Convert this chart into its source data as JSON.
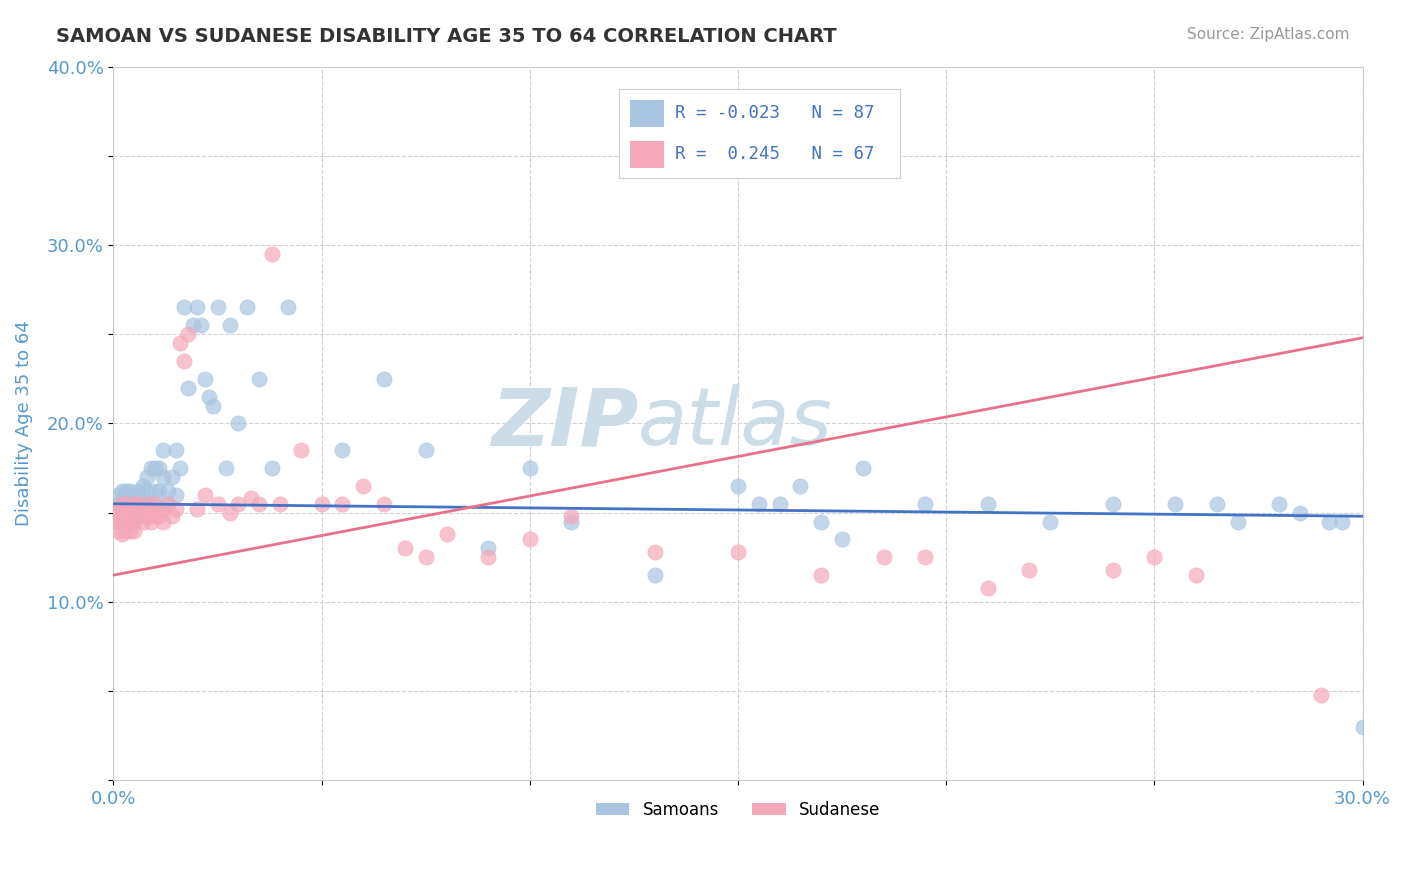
{
  "title": "SAMOAN VS SUDANESE DISABILITY AGE 35 TO 64 CORRELATION CHART",
  "source_text": "Source: ZipAtlas.com",
  "ylabel": "Disability Age 35 to 64",
  "xlim": [
    0.0,
    0.3
  ],
  "ylim": [
    0.0,
    0.4
  ],
  "xticks": [
    0.0,
    0.05,
    0.1,
    0.15,
    0.2,
    0.25,
    0.3
  ],
  "yticks": [
    0.0,
    0.05,
    0.1,
    0.15,
    0.2,
    0.25,
    0.3,
    0.35,
    0.4
  ],
  "xtick_labels": [
    "0.0%",
    "",
    "",
    "",
    "",
    "",
    "30.0%"
  ],
  "ytick_labels": [
    "",
    "",
    "10.0%",
    "",
    "20.0%",
    "",
    "30.0%",
    "",
    "40.0%"
  ],
  "samoan_R": -0.023,
  "samoan_N": 87,
  "sudanese_R": 0.245,
  "sudanese_N": 67,
  "samoan_color": "#a8c4e0",
  "sudanese_color": "#f4a7b9",
  "samoan_line_color": "#4472c4",
  "sudanese_line_color": "#e8718a",
  "background_color": "#ffffff",
  "grid_color": "#cccccc",
  "title_color": "#333333",
  "axis_label_color": "#5599cc",
  "tick_label_color": "#5599cc",
  "watermark_color": "#ccdde8",
  "legend_R_color": "#4472c4",
  "samoan_trend_start_y": 0.155,
  "samoan_trend_end_y": 0.148,
  "sudanese_trend_start_y": 0.115,
  "sudanese_trend_end_y": 0.248,
  "samoan_x": [
    0.001,
    0.001,
    0.001,
    0.001,
    0.002,
    0.002,
    0.002,
    0.002,
    0.003,
    0.003,
    0.003,
    0.003,
    0.003,
    0.004,
    0.004,
    0.004,
    0.004,
    0.005,
    0.005,
    0.005,
    0.005,
    0.006,
    0.006,
    0.006,
    0.007,
    0.007,
    0.007,
    0.008,
    0.008,
    0.008,
    0.009,
    0.009,
    0.01,
    0.01,
    0.01,
    0.011,
    0.011,
    0.012,
    0.012,
    0.013,
    0.013,
    0.014,
    0.015,
    0.015,
    0.016,
    0.017,
    0.018,
    0.019,
    0.02,
    0.021,
    0.022,
    0.023,
    0.024,
    0.025,
    0.027,
    0.028,
    0.03,
    0.032,
    0.035,
    0.038,
    0.042,
    0.055,
    0.065,
    0.075,
    0.09,
    0.1,
    0.11,
    0.13,
    0.15,
    0.155,
    0.16,
    0.165,
    0.17,
    0.175,
    0.18,
    0.195,
    0.21,
    0.225,
    0.24,
    0.255,
    0.265,
    0.27,
    0.28,
    0.285,
    0.292,
    0.295,
    0.3
  ],
  "samoan_y": [
    0.155,
    0.148,
    0.16,
    0.145,
    0.152,
    0.158,
    0.145,
    0.162,
    0.148,
    0.155,
    0.16,
    0.145,
    0.162,
    0.155,
    0.148,
    0.162,
    0.145,
    0.158,
    0.152,
    0.148,
    0.155,
    0.162,
    0.148,
    0.155,
    0.165,
    0.152,
    0.158,
    0.17,
    0.155,
    0.162,
    0.175,
    0.155,
    0.175,
    0.162,
    0.155,
    0.175,
    0.162,
    0.17,
    0.185,
    0.162,
    0.155,
    0.17,
    0.185,
    0.16,
    0.175,
    0.265,
    0.22,
    0.255,
    0.265,
    0.255,
    0.225,
    0.215,
    0.21,
    0.265,
    0.175,
    0.255,
    0.2,
    0.265,
    0.225,
    0.175,
    0.265,
    0.185,
    0.225,
    0.185,
    0.13,
    0.175,
    0.145,
    0.115,
    0.165,
    0.155,
    0.155,
    0.165,
    0.145,
    0.135,
    0.175,
    0.155,
    0.155,
    0.145,
    0.155,
    0.155,
    0.155,
    0.145,
    0.155,
    0.15,
    0.145,
    0.145,
    0.03
  ],
  "sudanese_x": [
    0.001,
    0.001,
    0.001,
    0.001,
    0.002,
    0.002,
    0.002,
    0.002,
    0.003,
    0.003,
    0.003,
    0.004,
    0.004,
    0.004,
    0.005,
    0.005,
    0.005,
    0.006,
    0.006,
    0.007,
    0.007,
    0.008,
    0.008,
    0.009,
    0.009,
    0.01,
    0.01,
    0.011,
    0.012,
    0.012,
    0.013,
    0.014,
    0.015,
    0.016,
    0.017,
    0.018,
    0.02,
    0.022,
    0.025,
    0.028,
    0.03,
    0.033,
    0.035,
    0.038,
    0.04,
    0.045,
    0.05,
    0.055,
    0.06,
    0.065,
    0.07,
    0.075,
    0.08,
    0.09,
    0.1,
    0.11,
    0.13,
    0.15,
    0.17,
    0.185,
    0.195,
    0.21,
    0.22,
    0.24,
    0.25,
    0.26,
    0.29
  ],
  "sudanese_y": [
    0.148,
    0.14,
    0.152,
    0.145,
    0.145,
    0.155,
    0.138,
    0.15,
    0.148,
    0.14,
    0.155,
    0.148,
    0.14,
    0.152,
    0.145,
    0.155,
    0.14,
    0.148,
    0.155,
    0.145,
    0.152,
    0.148,
    0.155,
    0.145,
    0.152,
    0.148,
    0.155,
    0.148,
    0.152,
    0.145,
    0.155,
    0.148,
    0.152,
    0.245,
    0.235,
    0.25,
    0.152,
    0.16,
    0.155,
    0.15,
    0.155,
    0.158,
    0.155,
    0.295,
    0.155,
    0.185,
    0.155,
    0.155,
    0.165,
    0.155,
    0.13,
    0.125,
    0.138,
    0.125,
    0.135,
    0.148,
    0.128,
    0.128,
    0.115,
    0.125,
    0.125,
    0.108,
    0.118,
    0.118,
    0.125,
    0.115,
    0.048
  ]
}
